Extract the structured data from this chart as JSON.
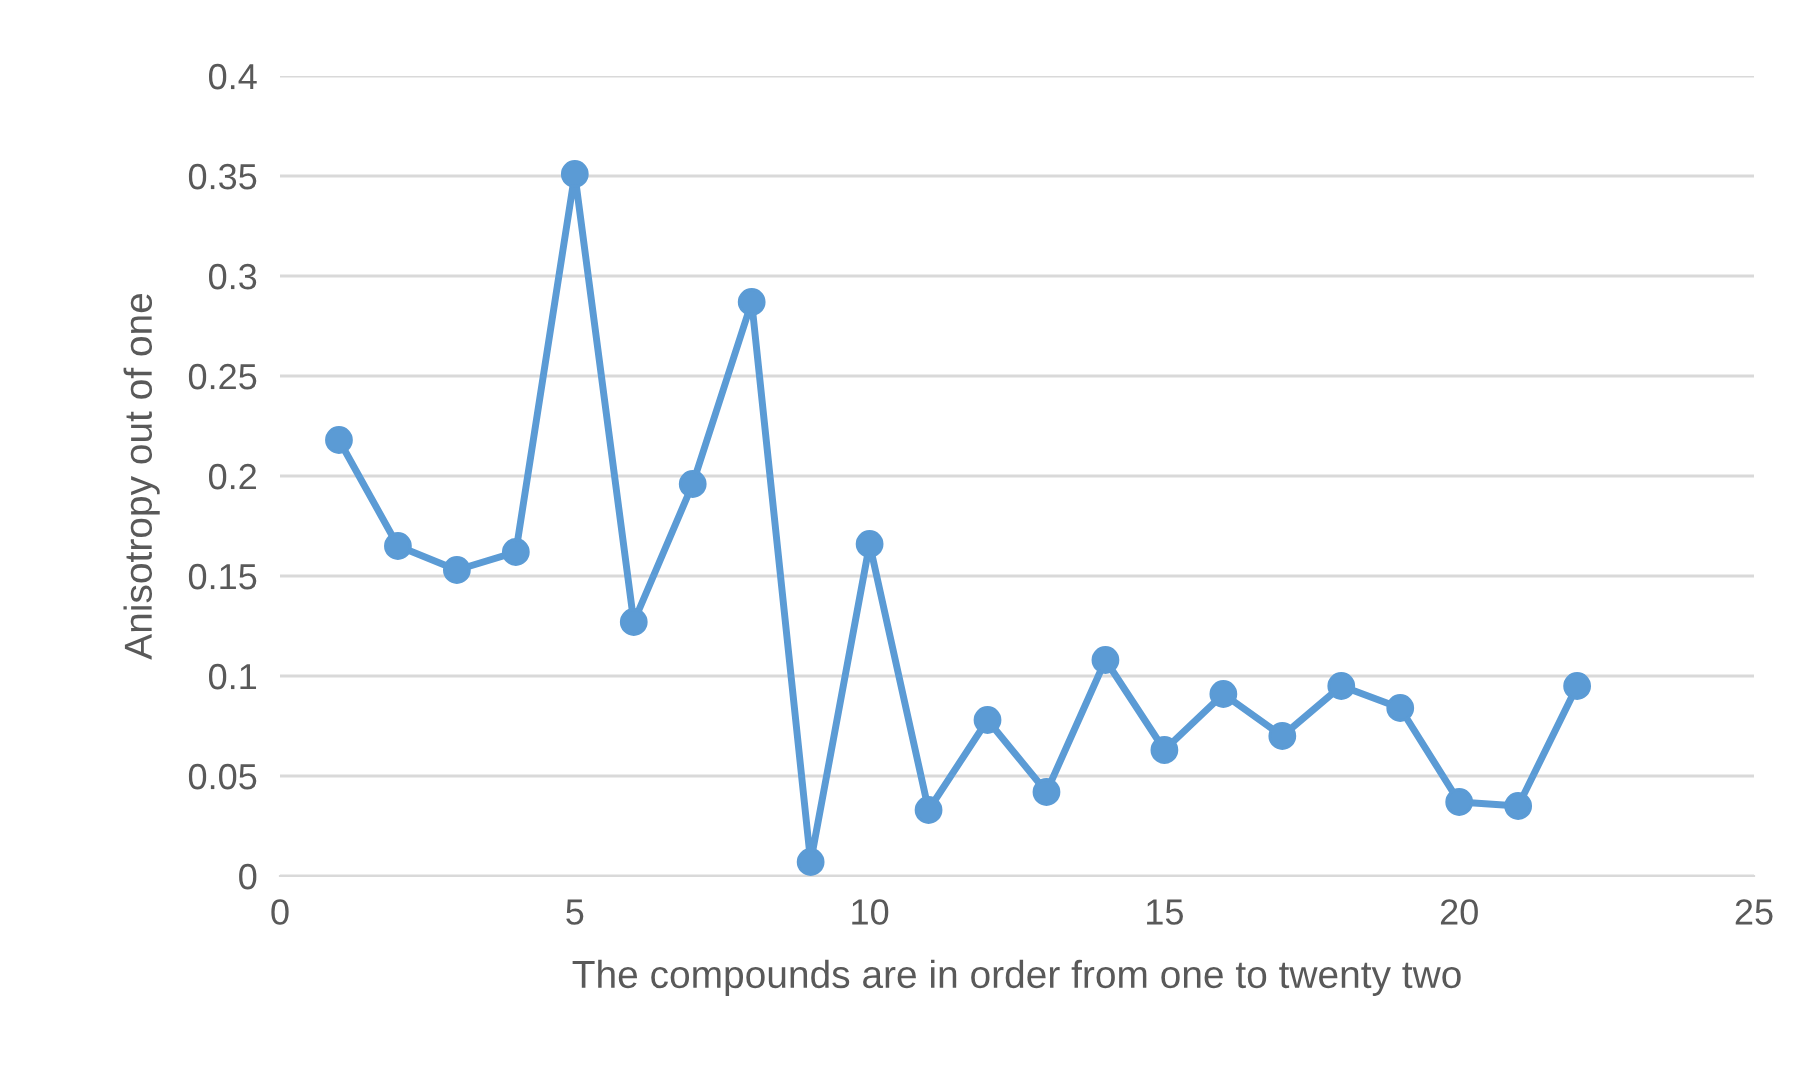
{
  "chart_data": {
    "type": "line",
    "xlabel": "The compounds are in order from one to twenty two",
    "ylabel": "Anisotropy out of one",
    "x": [
      1,
      2,
      3,
      4,
      5,
      6,
      7,
      8,
      9,
      10,
      11,
      12,
      13,
      14,
      15,
      16,
      17,
      18,
      19,
      20,
      21,
      22
    ],
    "series": [
      {
        "color": "#5b9bd5",
        "values": [
          0.218,
          0.165,
          0.153,
          0.162,
          0.351,
          0.127,
          0.196,
          0.287,
          0.007,
          0.166,
          0.033,
          0.078,
          0.042,
          0.108,
          0.063,
          0.091,
          0.07,
          0.095,
          0.084,
          0.037,
          0.035,
          0.095
        ]
      }
    ],
    "xlim": [
      0,
      25
    ],
    "xticks": [
      0,
      5,
      10,
      15,
      20,
      25
    ],
    "ylim": [
      0,
      0.4
    ],
    "yticks": [
      0,
      0.05,
      0.1,
      0.15,
      0.2,
      0.25,
      0.3,
      0.35,
      0.4
    ],
    "grid": "y",
    "marker": "circle",
    "line_style": "solid"
  }
}
